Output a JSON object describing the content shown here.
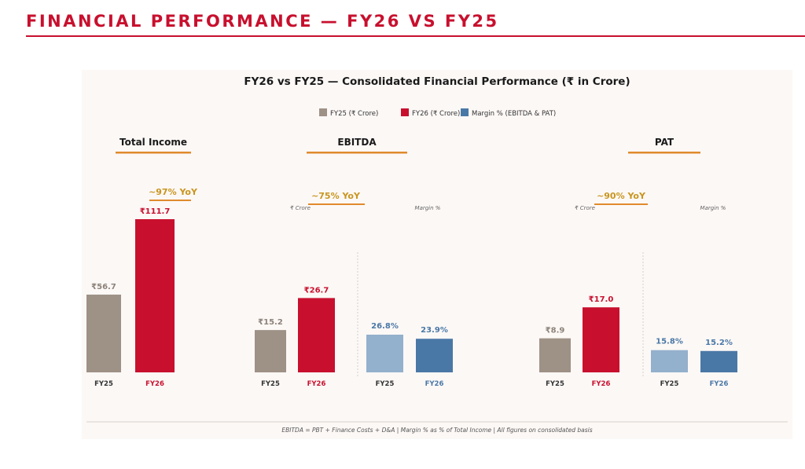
{
  "page": {
    "title": "FINANCIAL PERFORMANCE — FY26 VS FY25",
    "colors": {
      "brand": "#c8102e",
      "fy25": "#9e9186",
      "fy26": "#c8102e",
      "margin_fy25": "#93b0cc",
      "margin_fy26": "#4a78a6",
      "accent": "#e08a2c",
      "yoy_text": "#c9951f"
    }
  },
  "chart_data": {
    "type": "bar",
    "title": "FY26 vs FY25 — Consolidated Financial Performance  (₹ in Crore)",
    "legend": {
      "placement": "top-center",
      "entries": [
        {
          "label": "FY25 (₹ Crore)",
          "color": "#9e9186"
        },
        {
          "label": "FY26 (₹ Crore)",
          "color": "#c8102e"
        },
        {
          "label": "Margin % (EBITDA & PAT)",
          "color": "#4a78a6"
        }
      ]
    },
    "grid": false,
    "footnote": "EBITDA = PBT + Finance Costs + D&A  |  Margin % as % of Total Income  |  All figures on consolidated basis",
    "panels": [
      {
        "title": "Total Income",
        "yoy": "~97% YoY",
        "sub_labels": [],
        "categories": [
          "FY25",
          "FY26"
        ],
        "values": [
          56.7,
          111.7
        ],
        "value_labels": [
          "₹56.7",
          "₹111.7"
        ],
        "margin": null
      },
      {
        "title": "EBITDA",
        "yoy": "~75% YoY",
        "sub_labels": [
          "₹ Crore",
          "Margin %"
        ],
        "categories": [
          "FY25",
          "FY26"
        ],
        "values": [
          15.2,
          26.7
        ],
        "value_labels": [
          "₹15.2",
          "₹26.7"
        ],
        "margin": {
          "categories": [
            "FY25",
            "FY26"
          ],
          "values": [
            26.8,
            23.9
          ],
          "value_labels": [
            "26.8%",
            "23.9%"
          ]
        }
      },
      {
        "title": "PAT",
        "yoy": "~90% YoY",
        "sub_labels": [
          "₹ Crore",
          "Margin %"
        ],
        "categories": [
          "FY25",
          "FY26"
        ],
        "values": [
          8.9,
          17.0
        ],
        "value_labels": [
          "₹8.9",
          "₹17.0"
        ],
        "margin": {
          "categories": [
            "FY25",
            "FY26"
          ],
          "values": [
            15.8,
            15.2
          ],
          "value_labels": [
            "15.8%",
            "15.2%"
          ]
        }
      }
    ]
  }
}
